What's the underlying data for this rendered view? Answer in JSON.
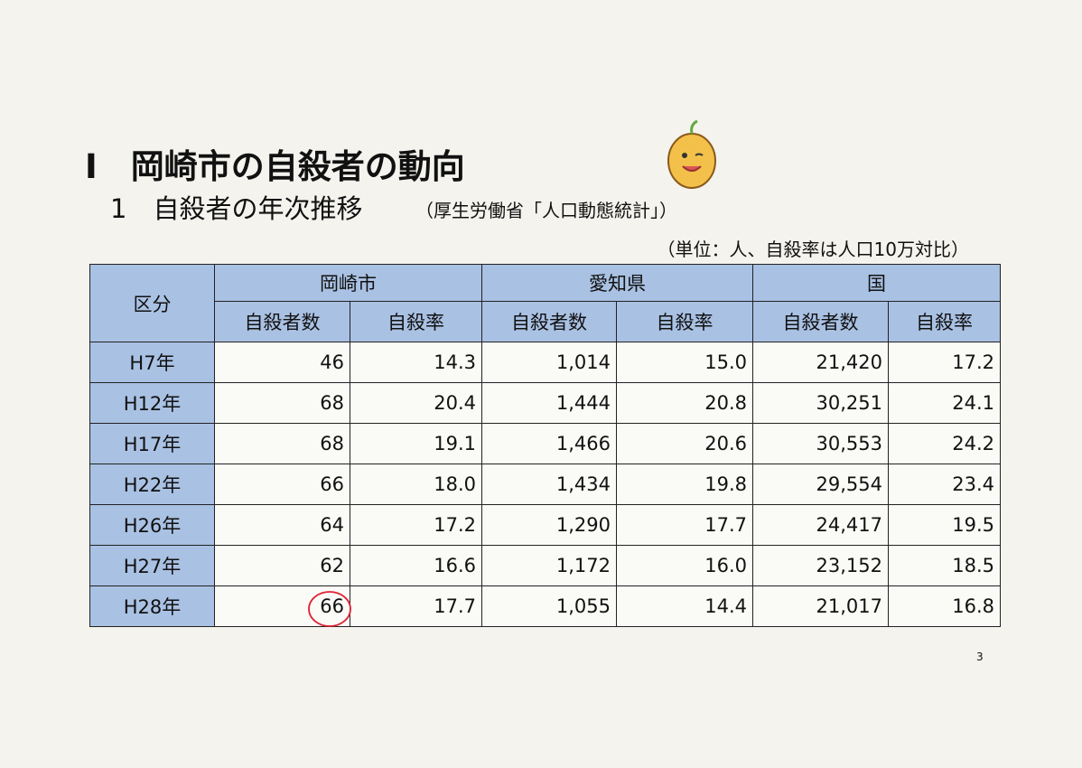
{
  "header": {
    "title": "Ⅰ　岡崎市の自殺者の動向",
    "subtitle": "1　自殺者の年次推移",
    "source": "（厚生労働省「人口動態統計」）",
    "unit_note": "（単位：人、自殺率は人口10万対比）"
  },
  "table": {
    "corner": "区分",
    "groups": [
      "岡崎市",
      "愛知県",
      "国"
    ],
    "columns": [
      "自殺者数",
      "自殺率",
      "自殺者数",
      "自殺率",
      "自殺者数",
      "自殺率"
    ],
    "rows": [
      [
        "H7年",
        "46",
        "14.3",
        "1,014",
        "15.0",
        "21,420",
        "17.2"
      ],
      [
        "H12年",
        "68",
        "20.4",
        "1,444",
        "20.8",
        "30,251",
        "24.1"
      ],
      [
        "H17年",
        "68",
        "19.1",
        "1,466",
        "20.6",
        "30,553",
        "24.2"
      ],
      [
        "H22年",
        "66",
        "18.0",
        "1,434",
        "19.8",
        "29,554",
        "23.4"
      ],
      [
        "H26年",
        "64",
        "17.2",
        "1,290",
        "17.7",
        "24,417",
        "19.5"
      ],
      [
        "H27年",
        "62",
        "16.6",
        "1,172",
        "16.0",
        "23,152",
        "18.5"
      ],
      [
        "H28年",
        "66",
        "17.7",
        "1,055",
        "14.4",
        "21,017",
        "16.8"
      ]
    ]
  },
  "page_number": "3"
}
